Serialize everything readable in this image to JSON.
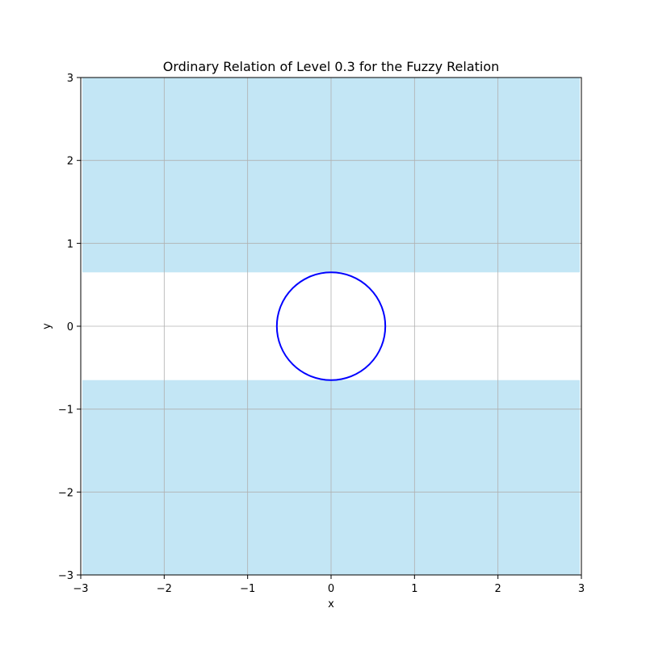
{
  "chart_data": {
    "type": "area",
    "title": "Ordinary Relation of Level 0.3 for the Fuzzy Relation",
    "xlabel": "x",
    "ylabel": "y",
    "xlim": [
      -3,
      3
    ],
    "ylim": [
      -3,
      3
    ],
    "grid": true,
    "x_ticks": [
      -3,
      -2,
      -1,
      0,
      1,
      2,
      3
    ],
    "y_ticks": [
      -3,
      -2,
      -1,
      0,
      1,
      2,
      3
    ],
    "x_tick_labels": [
      "−3",
      "−2",
      "−1",
      "0",
      "1",
      "2",
      "3"
    ],
    "y_tick_labels": [
      "−3",
      "−2",
      "−1",
      "0",
      "1",
      "2",
      "3"
    ],
    "filled_region": {
      "description": "|y| >= 0.65",
      "bands": [
        {
          "y_from": 0.65,
          "y_to": 3
        },
        {
          "y_from": -3,
          "y_to": -0.65
        }
      ],
      "x_range": [
        -3,
        3
      ],
      "color": "#87CEEB",
      "alpha": 0.5
    },
    "circle": {
      "center": [
        0,
        0
      ],
      "radius": 0.65,
      "color": "#0000FF"
    }
  },
  "colors": {
    "grid": "#b0b0b0",
    "axes": "#000000"
  }
}
